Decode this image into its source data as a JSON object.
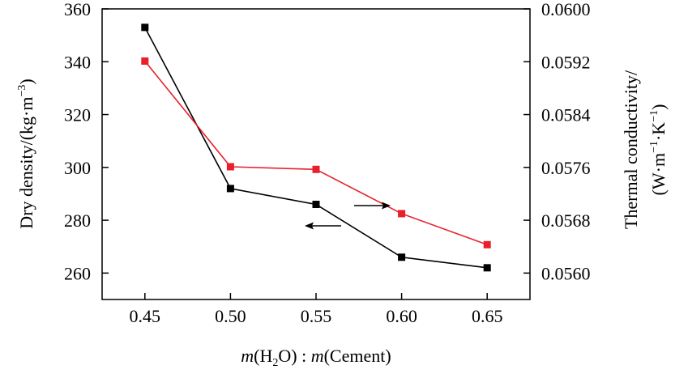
{
  "chart_data": {
    "type": "line",
    "x": [
      0.45,
      0.5,
      0.55,
      0.6,
      0.65
    ],
    "x_tick_labels": [
      "0.45",
      "0.50",
      "0.55",
      "0.60",
      "0.65"
    ],
    "xlim": [
      0.425,
      0.675
    ],
    "x_label": {
      "pre": "m",
      "mid1": "(H",
      "sub": "2",
      "mid2": "O) : ",
      "m2": "m",
      "post": "(Cement)"
    },
    "y_left": {
      "label": "Dry density/(kg·m",
      "label_sup": "−3",
      "label_end": ")",
      "range": [
        250,
        360
      ],
      "ticks": [
        260,
        280,
        300,
        320,
        340,
        360
      ],
      "tick_labels": [
        "260",
        "280",
        "300",
        "320",
        "340",
        "360"
      ]
    },
    "y_right": {
      "label_line1": "Thermal conductivity/",
      "label_line2_a": "(W·m",
      "label_line2_sup1": "−1",
      "label_line2_b": "·K",
      "label_line2_sup2": "−1",
      "label_line2_c": ")",
      "range": [
        0.0556,
        0.06
      ],
      "ticks": [
        0.056,
        0.0568,
        0.0576,
        0.0584,
        0.0592,
        0.06
      ],
      "tick_labels": [
        "0.0560",
        "0.0568",
        "0.0576",
        "0.0584",
        "0.0592",
        "0.0600"
      ]
    },
    "series": [
      {
        "name": "Dry density",
        "axis": "left",
        "color": "#000000",
        "marker": "square",
        "values": [
          353,
          292,
          286,
          266,
          262
        ]
      },
      {
        "name": "Thermal conductivity",
        "axis": "right",
        "color": "#e8202a",
        "marker": "square",
        "values": [
          0.05921,
          0.05761,
          0.05757,
          0.0569,
          0.05643
        ]
      }
    ],
    "annotations": [
      {
        "type": "arrow",
        "direction": "right",
        "refers_to": "Thermal conductivity"
      },
      {
        "type": "arrow",
        "direction": "left",
        "refers_to": "Dry density"
      }
    ]
  }
}
